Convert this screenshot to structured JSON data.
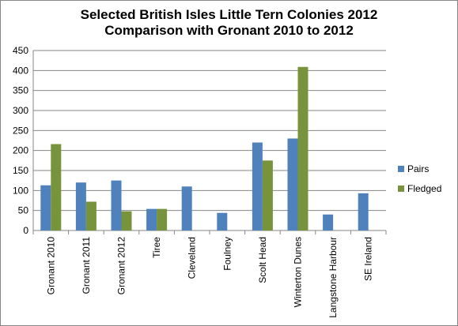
{
  "chart_data": {
    "type": "bar",
    "title_line1": "Selected British Isles Little  Tern Colonies 2012",
    "title_line2": "Comparison with Gronant 2010 to 2012",
    "categories": [
      "Gronant 2010",
      "Gronant 2011",
      "Gronant 2012",
      "Tiree",
      "Cleveland",
      "Foulney",
      "Scolt Head",
      "Winterton Dunes",
      "Langstone Harbour",
      "SE Ireland"
    ],
    "series": [
      {
        "name": "Pairs",
        "color": "#4f81bd",
        "values": [
          113,
          120,
          125,
          54,
          110,
          44,
          220,
          230,
          40,
          93
        ]
      },
      {
        "name": "Fledged",
        "color": "#77933c",
        "values": [
          216,
          72,
          48,
          54,
          null,
          null,
          175,
          409,
          null,
          null
        ]
      }
    ],
    "ylim": [
      0,
      450
    ],
    "yticks": [
      0,
      50,
      100,
      150,
      200,
      250,
      300,
      350,
      400,
      450
    ],
    "xlabel": "",
    "ylabel": "",
    "grid": true,
    "legend_position": "right"
  }
}
